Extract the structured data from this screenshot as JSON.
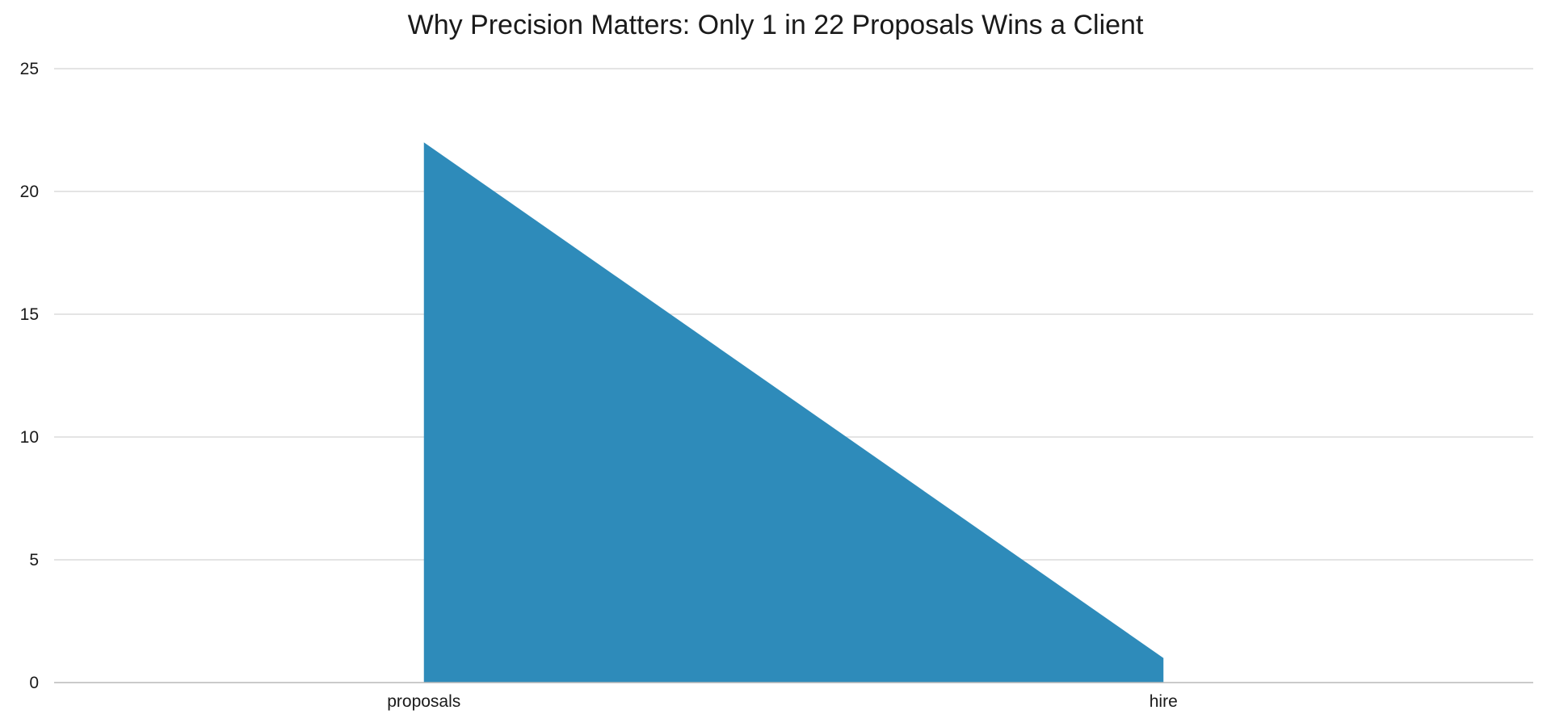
{
  "chart_data": {
    "type": "area",
    "title": "Why Precision Matters: Only 1 in 22 Proposals Wins a Client",
    "categories": [
      "proposals",
      "hire"
    ],
    "series": [
      {
        "values": [
          22,
          1
        ],
        "color": "#2e8bba"
      }
    ],
    "xlabel": "",
    "ylabel": "",
    "ylim": [
      0,
      25
    ],
    "yticks": [
      0,
      5,
      10,
      15,
      20,
      25
    ],
    "grid": true,
    "legend": "none"
  }
}
